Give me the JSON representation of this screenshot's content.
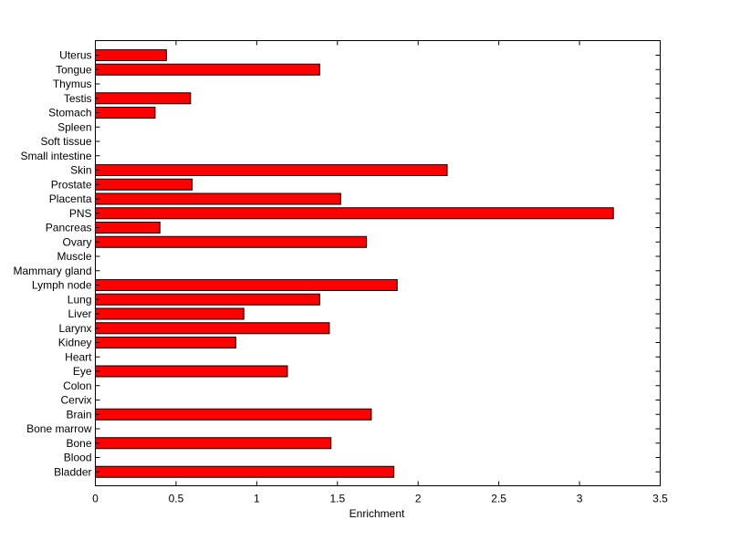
{
  "chart_data": {
    "type": "bar",
    "orientation": "horizontal",
    "title": "",
    "xlabel": "Enrichment",
    "ylabel": "",
    "xlim": [
      0,
      3.5
    ],
    "xticks": [
      "0",
      "0.5",
      "1",
      "1.5",
      "2",
      "2.5",
      "3",
      "3.5"
    ],
    "bar_color": "#ff0000",
    "grid": false,
    "categories": [
      "Uterus",
      "Tongue",
      "Thymus",
      "Testis",
      "Stomach",
      "Spleen",
      "Soft tissue",
      "Small intestine",
      "Skin",
      "Prostate",
      "Placenta",
      "PNS",
      "Pancreas",
      "Ovary",
      "Muscle",
      "Mammary gland",
      "Lymph node",
      "Lung",
      "Liver",
      "Larynx",
      "Kidney",
      "Heart",
      "Eye",
      "Colon",
      "Cervix",
      "Brain",
      "Bone marrow",
      "Bone",
      "Blood",
      "Bladder"
    ],
    "values": [
      0.44,
      1.39,
      0,
      0.59,
      0.37,
      0,
      0,
      0,
      2.18,
      0.6,
      1.52,
      3.21,
      0.4,
      1.68,
      0,
      0,
      1.87,
      1.39,
      0.92,
      1.45,
      0.87,
      0,
      1.19,
      0,
      0,
      1.71,
      0,
      1.46,
      0,
      1.85
    ]
  }
}
